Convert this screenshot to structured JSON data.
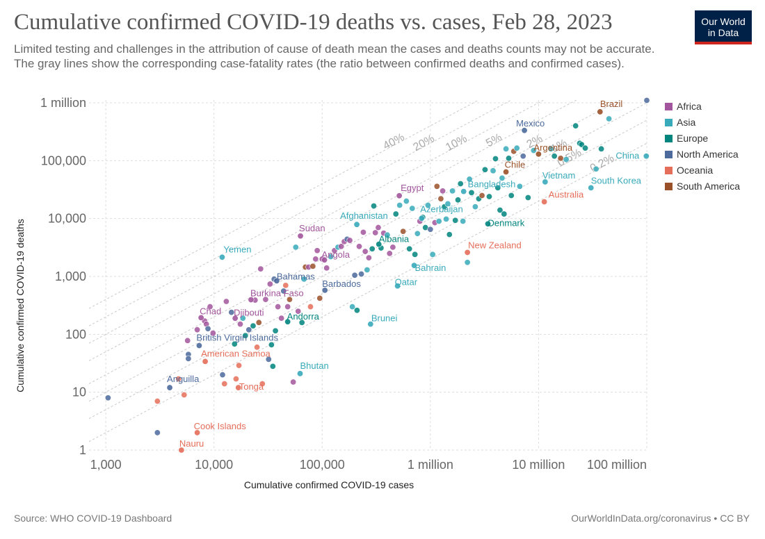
{
  "header": {
    "title": "Cumulative confirmed COVID-19 deaths vs. cases, Feb 28, 2023",
    "subtitle": "Limited testing and challenges in the attribution of cause of death mean the cases and deaths counts may not be accurate. The gray lines show the corresponding case-fatality rates (the ratio between confirmed deaths and confirmed cases).",
    "logo_line1": "Our World",
    "logo_line2": "in Data"
  },
  "footer": {
    "source": "Source: WHO COVID-19 Dashboard",
    "credit": "OurWorldInData.org/coronavirus • CC BY"
  },
  "colors": {
    "Africa": "#a2559c",
    "Asia": "#38aaba",
    "Europe": "#00847e",
    "North America": "#4c6a9c",
    "Oceania": "#e56e5a",
    "South America": "#9a5129"
  },
  "chart_data": {
    "type": "scatter",
    "title": "Cumulative confirmed COVID-19 deaths vs. cases, Feb 28, 2023",
    "xlabel": "Cumulative confirmed COVID-19 cases",
    "ylabel": "Cumulative confirmed COVID-19 deaths",
    "xscale": "log",
    "yscale": "log",
    "xlim": [
      700,
      100000000
    ],
    "ylim": [
      1,
      1000000
    ],
    "x_ticks": [
      {
        "value": 1000,
        "label": "1,000"
      },
      {
        "value": 10000,
        "label": "10,000"
      },
      {
        "value": 100000,
        "label": "100,000"
      },
      {
        "value": 1000000,
        "label": "1 million"
      },
      {
        "value": 10000000,
        "label": "10 million"
      },
      {
        "value": 100000000,
        "label": "100 million"
      }
    ],
    "y_ticks": [
      {
        "value": 1,
        "label": "1"
      },
      {
        "value": 10,
        "label": "10"
      },
      {
        "value": 100,
        "label": "100"
      },
      {
        "value": 1000,
        "label": "1,000"
      },
      {
        "value": 10000,
        "label": "10,000"
      },
      {
        "value": 100000,
        "label": "100,000"
      },
      {
        "value": 1000000,
        "label": "1 million"
      }
    ],
    "legend": [
      "Africa",
      "Asia",
      "Europe",
      "North America",
      "Oceania",
      "South America"
    ],
    "legend_position": "right",
    "fatality_rates": [
      {
        "rate": 0.4,
        "label": "40%"
      },
      {
        "rate": 0.2,
        "label": "20%"
      },
      {
        "rate": 0.1,
        "label": "10%"
      },
      {
        "rate": 0.05,
        "label": "5%"
      },
      {
        "rate": 0.02,
        "label": "2%"
      },
      {
        "rate": 0.01,
        "label": "1%"
      },
      {
        "rate": 0.005,
        "label": "0.5%"
      },
      {
        "rate": 0.002,
        "label": "0.2%"
      }
    ],
    "labeled_points": [
      {
        "name": "Brazil",
        "x": 37000000,
        "y": 699000,
        "continent": "South America"
      },
      {
        "name": "Mexico",
        "x": 7400000,
        "y": 333000,
        "continent": "North America"
      },
      {
        "name": "China",
        "x": 99000000,
        "y": 120000,
        "continent": "Asia"
      },
      {
        "name": "Argentina",
        "x": 10000000,
        "y": 130000,
        "continent": "South America"
      },
      {
        "name": "Chile",
        "x": 5000000,
        "y": 64000,
        "continent": "South America"
      },
      {
        "name": "Vietnam",
        "x": 11500000,
        "y": 43000,
        "continent": "Asia"
      },
      {
        "name": "South Korea",
        "x": 30500000,
        "y": 34000,
        "continent": "Asia"
      },
      {
        "name": "Australia",
        "x": 11300000,
        "y": 19500,
        "continent": "Oceania"
      },
      {
        "name": "Bangladesh",
        "x": 2030000,
        "y": 29400,
        "continent": "Asia"
      },
      {
        "name": "Egypt",
        "x": 516000,
        "y": 24800,
        "continent": "Africa"
      },
      {
        "name": "Azerbaijan",
        "x": 830000,
        "y": 10100,
        "continent": "Asia"
      },
      {
        "name": "Denmark",
        "x": 3400000,
        "y": 8100,
        "continent": "Europe"
      },
      {
        "name": "Afghanistan",
        "x": 209000,
        "y": 7900,
        "continent": "Asia"
      },
      {
        "name": "Sudan",
        "x": 63000,
        "y": 5000,
        "continent": "Africa"
      },
      {
        "name": "Albania",
        "x": 334000,
        "y": 3600,
        "continent": "Europe"
      },
      {
        "name": "New Zealand",
        "x": 2200000,
        "y": 2600,
        "continent": "Oceania"
      },
      {
        "name": "Yemen",
        "x": 11900,
        "y": 2150,
        "continent": "Asia"
      },
      {
        "name": "Angola",
        "x": 105000,
        "y": 1930,
        "continent": "Africa"
      },
      {
        "name": "Bahrain",
        "x": 708000,
        "y": 1550,
        "continent": "Asia"
      },
      {
        "name": "Bahamas",
        "x": 38000,
        "y": 840,
        "continent": "North America"
      },
      {
        "name": "Qatar",
        "x": 497000,
        "y": 685,
        "continent": "Asia"
      },
      {
        "name": "Barbados",
        "x": 106000,
        "y": 578,
        "continent": "North America"
      },
      {
        "name": "Burkina Faso",
        "x": 22000,
        "y": 396,
        "continent": "Africa"
      },
      {
        "name": "Chad",
        "x": 7600,
        "y": 194,
        "continent": "Africa"
      },
      {
        "name": "Djibouti",
        "x": 15700,
        "y": 189,
        "continent": "Africa"
      },
      {
        "name": "Andorra",
        "x": 48000,
        "y": 165,
        "continent": "Europe"
      },
      {
        "name": "Brunei",
        "x": 280000,
        "y": 150,
        "continent": "Asia"
      },
      {
        "name": "British Virgin Islands",
        "x": 7300,
        "y": 64,
        "continent": "North America"
      },
      {
        "name": "American Samoa",
        "x": 8300,
        "y": 34,
        "continent": "Oceania"
      },
      {
        "name": "Bhutan",
        "x": 62500,
        "y": 21,
        "continent": "Asia"
      },
      {
        "name": "Tonga",
        "x": 16800,
        "y": 12,
        "continent": "Oceania"
      },
      {
        "name": "Anguilla",
        "x": 3900,
        "y": 12,
        "continent": "North America"
      },
      {
        "name": "Cook Islands",
        "x": 7000,
        "y": 2,
        "continent": "Oceania"
      },
      {
        "name": "Nauru",
        "x": 5000,
        "y": 1,
        "continent": "Oceania"
      }
    ],
    "unlabeled_points": [
      {
        "x": 1050,
        "y": 8,
        "continent": "North America"
      },
      {
        "x": 3000,
        "y": 7,
        "continent": "Oceania"
      },
      {
        "x": 3000,
        "y": 2,
        "continent": "North America"
      },
      {
        "x": 4700,
        "y": 17,
        "continent": "Oceania"
      },
      {
        "x": 5300,
        "y": 9,
        "continent": "Oceania"
      },
      {
        "x": 5800,
        "y": 45,
        "continent": "North America"
      },
      {
        "x": 5800,
        "y": 38,
        "continent": "North America"
      },
      {
        "x": 5700,
        "y": 78,
        "continent": "Africa"
      },
      {
        "x": 7000,
        "y": 120,
        "continent": "Africa"
      },
      {
        "x": 8200,
        "y": 170,
        "continent": "Africa"
      },
      {
        "x": 8500,
        "y": 150,
        "continent": "Africa"
      },
      {
        "x": 8800,
        "y": 125,
        "continent": "North America"
      },
      {
        "x": 9200,
        "y": 300,
        "continent": "Africa"
      },
      {
        "x": 9800,
        "y": 105,
        "continent": "Africa"
      },
      {
        "x": 12000,
        "y": 20,
        "continent": "North America"
      },
      {
        "x": 12500,
        "y": 14,
        "continent": "Oceania"
      },
      {
        "x": 13000,
        "y": 370,
        "continent": "Africa"
      },
      {
        "x": 14500,
        "y": 240,
        "continent": "North America"
      },
      {
        "x": 15500,
        "y": 68,
        "continent": "Europe"
      },
      {
        "x": 16000,
        "y": 17,
        "continent": "Oceania"
      },
      {
        "x": 17000,
        "y": 29,
        "continent": "Oceania"
      },
      {
        "x": 17500,
        "y": 150,
        "continent": "Africa"
      },
      {
        "x": 18500,
        "y": 190,
        "continent": "Asia"
      },
      {
        "x": 19500,
        "y": 95,
        "continent": "Europe"
      },
      {
        "x": 21000,
        "y": 120,
        "continent": "North America"
      },
      {
        "x": 23000,
        "y": 140,
        "continent": "Europe"
      },
      {
        "x": 24000,
        "y": 390,
        "continent": "Africa"
      },
      {
        "x": 25000,
        "y": 60,
        "continent": "Oceania"
      },
      {
        "x": 26000,
        "y": 160,
        "continent": "South America"
      },
      {
        "x": 27000,
        "y": 1350,
        "continent": "Africa"
      },
      {
        "x": 28000,
        "y": 14,
        "continent": "Oceania"
      },
      {
        "x": 30000,
        "y": 400,
        "continent": "Africa"
      },
      {
        "x": 32000,
        "y": 37,
        "continent": "North America"
      },
      {
        "x": 33000,
        "y": 740,
        "continent": "Africa"
      },
      {
        "x": 34000,
        "y": 66,
        "continent": "Europe"
      },
      {
        "x": 35000,
        "y": 28,
        "continent": "Europe"
      },
      {
        "x": 36000,
        "y": 900,
        "continent": "North America"
      },
      {
        "x": 37000,
        "y": 115,
        "continent": "Europe"
      },
      {
        "x": 39000,
        "y": 300,
        "continent": "Africa"
      },
      {
        "x": 42000,
        "y": 190,
        "continent": "Africa"
      },
      {
        "x": 44000,
        "y": 560,
        "continent": "North America"
      },
      {
        "x": 46000,
        "y": 700,
        "continent": "Oceania"
      },
      {
        "x": 48000,
        "y": 300,
        "continent": "Africa"
      },
      {
        "x": 50000,
        "y": 400,
        "continent": "South America"
      },
      {
        "x": 54000,
        "y": 15,
        "continent": "Africa"
      },
      {
        "x": 57000,
        "y": 3200,
        "continent": "Asia"
      },
      {
        "x": 60000,
        "y": 250,
        "continent": "Africa"
      },
      {
        "x": 65000,
        "y": 160,
        "continent": "Europe"
      },
      {
        "x": 68000,
        "y": 900,
        "continent": "Asia"
      },
      {
        "x": 70000,
        "y": 1450,
        "continent": "South America"
      },
      {
        "x": 75000,
        "y": 1450,
        "continent": "Africa"
      },
      {
        "x": 78000,
        "y": 300,
        "continent": "Oceania"
      },
      {
        "x": 82000,
        "y": 1500,
        "continent": "South America"
      },
      {
        "x": 87000,
        "y": 2000,
        "continent": "Africa"
      },
      {
        "x": 90000,
        "y": 2800,
        "continent": "Africa"
      },
      {
        "x": 95000,
        "y": 420,
        "continent": "South America"
      },
      {
        "x": 100000,
        "y": 2000,
        "continent": "Africa"
      },
      {
        "x": 110000,
        "y": 1400,
        "continent": "Africa"
      },
      {
        "x": 120000,
        "y": 2200,
        "continent": "Asia"
      },
      {
        "x": 130000,
        "y": 2800,
        "continent": "Africa"
      },
      {
        "x": 140000,
        "y": 3200,
        "continent": "Asia"
      },
      {
        "x": 150000,
        "y": 3300,
        "continent": "Africa"
      },
      {
        "x": 160000,
        "y": 4000,
        "continent": "Africa"
      },
      {
        "x": 170000,
        "y": 4400,
        "continent": "North America"
      },
      {
        "x": 180000,
        "y": 4200,
        "continent": "Africa"
      },
      {
        "x": 190000,
        "y": 300,
        "continent": "Asia"
      },
      {
        "x": 200000,
        "y": 1050,
        "continent": "North America"
      },
      {
        "x": 210000,
        "y": 260,
        "continent": "Europe"
      },
      {
        "x": 220000,
        "y": 3300,
        "continent": "Africa"
      },
      {
        "x": 230000,
        "y": 1100,
        "continent": "North America"
      },
      {
        "x": 240000,
        "y": 5800,
        "continent": "Africa"
      },
      {
        "x": 250000,
        "y": 2700,
        "continent": "Africa"
      },
      {
        "x": 260000,
        "y": 1300,
        "continent": "Asia"
      },
      {
        "x": 270000,
        "y": 2100,
        "continent": "Africa"
      },
      {
        "x": 290000,
        "y": 3000,
        "continent": "Europe"
      },
      {
        "x": 300000,
        "y": 16500,
        "continent": "Europe"
      },
      {
        "x": 310000,
        "y": 5700,
        "continent": "Africa"
      },
      {
        "x": 330000,
        "y": 7000,
        "continent": "Africa"
      },
      {
        "x": 350000,
        "y": 3100,
        "continent": "Europe"
      },
      {
        "x": 370000,
        "y": 5600,
        "continent": "Africa"
      },
      {
        "x": 400000,
        "y": 5200,
        "continent": "Asia"
      },
      {
        "x": 420000,
        "y": 2500,
        "continent": "Africa"
      },
      {
        "x": 450000,
        "y": 3200,
        "continent": "Africa"
      },
      {
        "x": 480000,
        "y": 12000,
        "continent": "Europe"
      },
      {
        "x": 520000,
        "y": 17000,
        "continent": "Asia"
      },
      {
        "x": 560000,
        "y": 6000,
        "continent": "South America"
      },
      {
        "x": 600000,
        "y": 20000,
        "continent": "Asia"
      },
      {
        "x": 640000,
        "y": 3000,
        "continent": "Europe"
      },
      {
        "x": 680000,
        "y": 15000,
        "continent": "Asia"
      },
      {
        "x": 720000,
        "y": 2400,
        "continent": "Europe"
      },
      {
        "x": 760000,
        "y": 5500,
        "continent": "Asia"
      },
      {
        "x": 800000,
        "y": 9000,
        "continent": "Africa"
      },
      {
        "x": 850000,
        "y": 10500,
        "continent": "Europe"
      },
      {
        "x": 900000,
        "y": 7000,
        "continent": "Europe"
      },
      {
        "x": 950000,
        "y": 17000,
        "continent": "Asia"
      },
      {
        "x": 1000000,
        "y": 6500,
        "continent": "North America"
      },
      {
        "x": 1050000,
        "y": 2400,
        "continent": "Asia"
      },
      {
        "x": 1100000,
        "y": 8500,
        "continent": "Africa"
      },
      {
        "x": 1150000,
        "y": 36000,
        "continent": "South America"
      },
      {
        "x": 1200000,
        "y": 9000,
        "continent": "Asia"
      },
      {
        "x": 1250000,
        "y": 22000,
        "continent": "South America"
      },
      {
        "x": 1300000,
        "y": 30000,
        "continent": "Africa"
      },
      {
        "x": 1350000,
        "y": 16000,
        "continent": "Europe"
      },
      {
        "x": 1400000,
        "y": 9800,
        "continent": "Asia"
      },
      {
        "x": 1450000,
        "y": 18000,
        "continent": "Asia"
      },
      {
        "x": 1500000,
        "y": 5300,
        "continent": "Europe"
      },
      {
        "x": 1600000,
        "y": 30000,
        "continent": "Asia"
      },
      {
        "x": 1700000,
        "y": 9300,
        "continent": "Europe"
      },
      {
        "x": 1800000,
        "y": 21000,
        "continent": "Europe"
      },
      {
        "x": 1900000,
        "y": 40000,
        "continent": "Europe"
      },
      {
        "x": 2000000,
        "y": 9000,
        "continent": "Asia"
      },
      {
        "x": 2200000,
        "y": 1750,
        "continent": "Asia"
      },
      {
        "x": 2300000,
        "y": 48000,
        "continent": "Asia"
      },
      {
        "x": 2400000,
        "y": 28000,
        "continent": "Europe"
      },
      {
        "x": 2600000,
        "y": 16000,
        "continent": "Asia"
      },
      {
        "x": 2800000,
        "y": 22000,
        "continent": "Europe"
      },
      {
        "x": 3000000,
        "y": 25000,
        "continent": "South America"
      },
      {
        "x": 3200000,
        "y": 70000,
        "continent": "Europe"
      },
      {
        "x": 3500000,
        "y": 24000,
        "continent": "Europe"
      },
      {
        "x": 3800000,
        "y": 67000,
        "continent": "Asia"
      },
      {
        "x": 4000000,
        "y": 108000,
        "continent": "Europe"
      },
      {
        "x": 4200000,
        "y": 34000,
        "continent": "Europe"
      },
      {
        "x": 4400000,
        "y": 14000,
        "continent": "Europe"
      },
      {
        "x": 4600000,
        "y": 50000,
        "continent": "Asia"
      },
      {
        "x": 4800000,
        "y": 12000,
        "continent": "Europe"
      },
      {
        "x": 5000000,
        "y": 160000,
        "continent": "Asia"
      },
      {
        "x": 5300000,
        "y": 110000,
        "continent": "Europe"
      },
      {
        "x": 5600000,
        "y": 25000,
        "continent": "Europe"
      },
      {
        "x": 5900000,
        "y": 145000,
        "continent": "South America"
      },
      {
        "x": 6300000,
        "y": 165000,
        "continent": "Asia"
      },
      {
        "x": 6700000,
        "y": 36000,
        "continent": "Asia"
      },
      {
        "x": 7200000,
        "y": 120000,
        "continent": "North America"
      },
      {
        "x": 8000000,
        "y": 23000,
        "continent": "Europe"
      },
      {
        "x": 9000000,
        "y": 150000,
        "continent": "Asia"
      },
      {
        "x": 13000000,
        "y": 160000,
        "continent": "Asia"
      },
      {
        "x": 14000000,
        "y": 120000,
        "continent": "Europe"
      },
      {
        "x": 16000000,
        "y": 110000,
        "continent": "South America"
      },
      {
        "x": 18000000,
        "y": 105000,
        "continent": "Asia"
      },
      {
        "x": 22000000,
        "y": 400000,
        "continent": "Europe"
      },
      {
        "x": 24000000,
        "y": 200000,
        "continent": "Europe"
      },
      {
        "x": 25000000,
        "y": 190000,
        "continent": "Europe"
      },
      {
        "x": 27000000,
        "y": 165000,
        "continent": "Europe"
      },
      {
        "x": 34000000,
        "y": 72000,
        "continent": "Asia"
      },
      {
        "x": 38000000,
        "y": 160000,
        "continent": "Europe"
      },
      {
        "x": 44700000,
        "y": 530000,
        "continent": "Asia"
      },
      {
        "x": 100000000,
        "y": 1100000,
        "continent": "North America"
      }
    ]
  }
}
